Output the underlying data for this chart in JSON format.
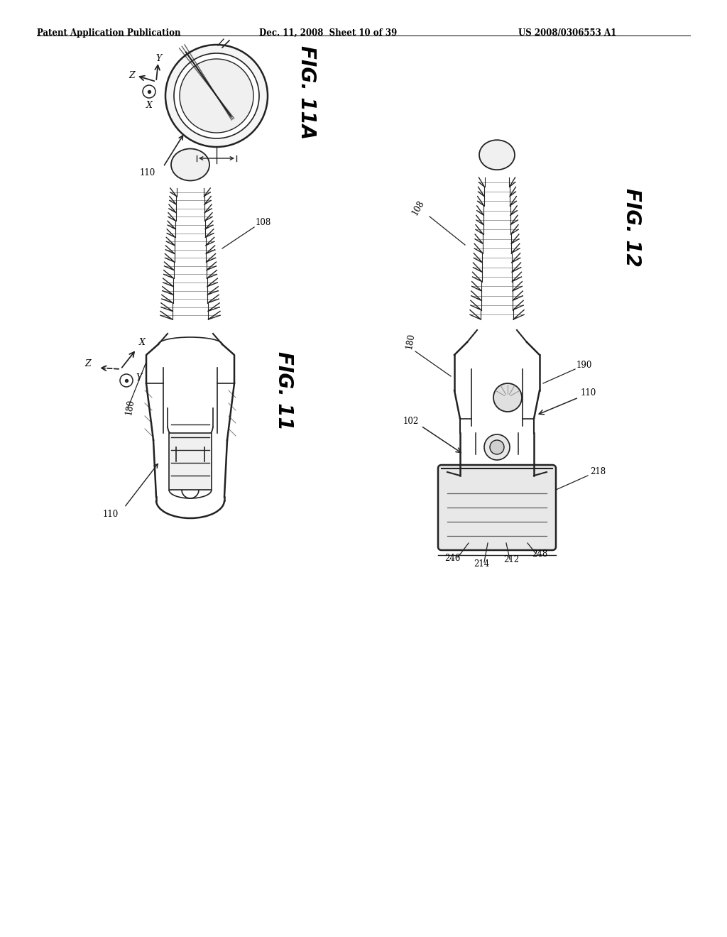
{
  "bg_color": "#ffffff",
  "header_left": "Patent Application Publication",
  "header_mid": "Dec. 11, 2008  Sheet 10 of 39",
  "header_right": "US 2008/0306553 A1",
  "fig11a_label": "FIG. 11A",
  "fig11_label": "FIG. 11",
  "fig12_label": "FIG. 12",
  "line_color": "#222222",
  "text_color": "#000000",
  "gray_fill": "#d8d8d8",
  "light_gray": "#e8e8e8"
}
